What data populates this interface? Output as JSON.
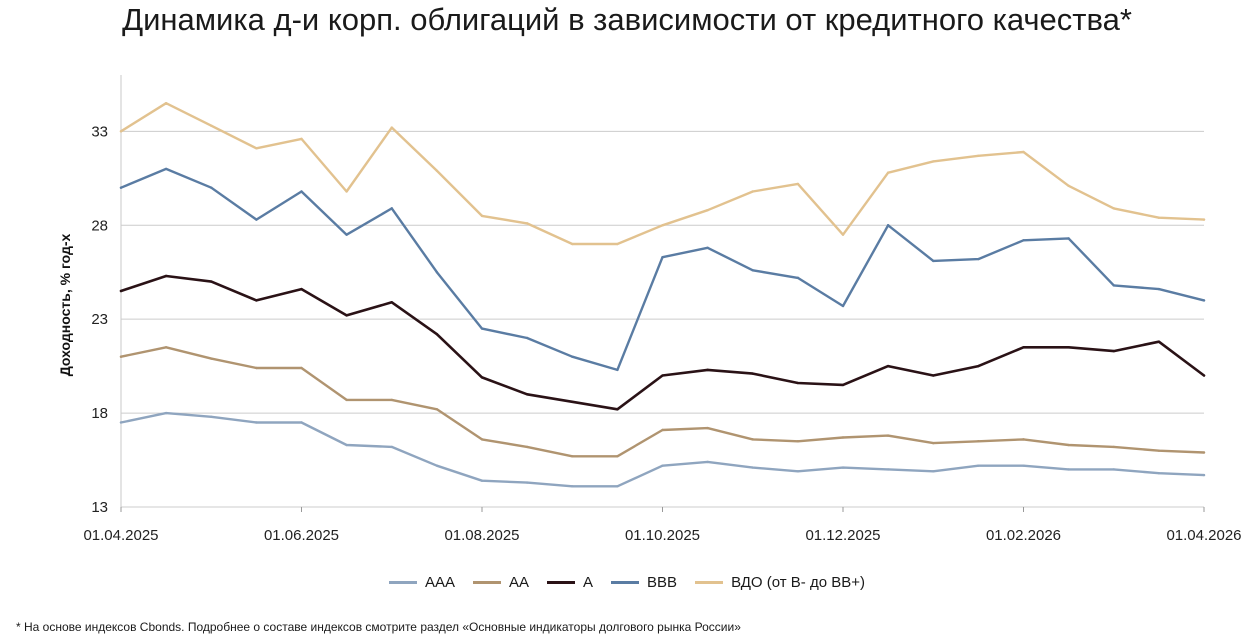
{
  "title": "Динамика д-и корп. облигаций в зависимости от кредитного качества*",
  "footnote": "* На основе индексов Cbonds. Подробнее о составе индексов смотрите раздел «Основные индикаторы долгового рынка России»",
  "chart_data": {
    "type": "line",
    "ylabel": "Доходность, % год-х",
    "ylim": [
      13,
      36
    ],
    "yticks": [
      13,
      18,
      23,
      28,
      33
    ],
    "xticks": [
      "01.04.2025",
      "01.06.2025",
      "01.08.2025",
      "01.10.2025",
      "01.12.2025",
      "01.02.2026",
      "01.04.2026"
    ],
    "grid": "horizontal",
    "legend_position": "bottom",
    "x": [
      "01.04.2025",
      "15.04.2025",
      "01.05.2025",
      "15.05.2025",
      "01.06.2025",
      "15.06.2025",
      "01.07.2025",
      "15.07.2025",
      "01.08.2025",
      "15.08.2025",
      "01.09.2025",
      "15.09.2025",
      "01.10.2025",
      "15.10.2025",
      "01.11.2025",
      "15.11.2025",
      "01.12.2025",
      "15.12.2025",
      "01.01.2026",
      "15.01.2026",
      "01.02.2026",
      "15.02.2026",
      "01.03.2026",
      "15.03.2026",
      "01.04.2026"
    ],
    "series": [
      {
        "name": "AAA",
        "color": "#8fa5bf",
        "values": [
          17.5,
          18.0,
          17.8,
          17.5,
          17.5,
          16.3,
          16.2,
          15.2,
          14.4,
          14.3,
          14.1,
          14.1,
          15.2,
          15.4,
          15.1,
          14.9,
          15.1,
          15.0,
          14.9,
          15.2,
          15.2,
          15.0,
          15.0,
          14.8,
          14.7
        ]
      },
      {
        "name": "AA",
        "color": "#b09470",
        "values": [
          21.0,
          21.5,
          20.9,
          20.4,
          20.4,
          18.7,
          18.7,
          18.2,
          16.6,
          16.2,
          15.7,
          15.7,
          17.1,
          17.2,
          16.6,
          16.5,
          16.7,
          16.8,
          16.4,
          16.5,
          16.6,
          16.3,
          16.2,
          16.0,
          15.9
        ]
      },
      {
        "name": "A",
        "color": "#2a1216",
        "values": [
          24.5,
          25.3,
          25.0,
          24.0,
          24.6,
          23.2,
          23.9,
          22.2,
          19.9,
          19.0,
          18.6,
          18.2,
          20.0,
          20.3,
          20.1,
          19.6,
          19.5,
          20.5,
          20.0,
          20.5,
          21.5,
          21.5,
          21.3,
          21.8,
          20.0
        ]
      },
      {
        "name": "BBB",
        "color": "#5a7ca3",
        "values": [
          30.0,
          31.0,
          30.0,
          28.3,
          29.8,
          27.5,
          28.9,
          25.5,
          22.5,
          22.0,
          21.0,
          20.3,
          26.3,
          26.8,
          25.6,
          25.2,
          23.7,
          28.0,
          26.1,
          26.2,
          27.2,
          27.3,
          24.8,
          24.6,
          24.0
        ]
      },
      {
        "name": "ВДО (от B- до BB+)",
        "color": "#e2c28f",
        "values": [
          33.0,
          34.5,
          33.3,
          32.1,
          32.6,
          29.8,
          33.2,
          30.9,
          28.5,
          28.1,
          27.0,
          27.0,
          28.0,
          28.8,
          29.8,
          30.2,
          27.5,
          30.8,
          31.4,
          31.7,
          31.9,
          30.1,
          28.9,
          28.4,
          28.3
        ]
      }
    ]
  }
}
